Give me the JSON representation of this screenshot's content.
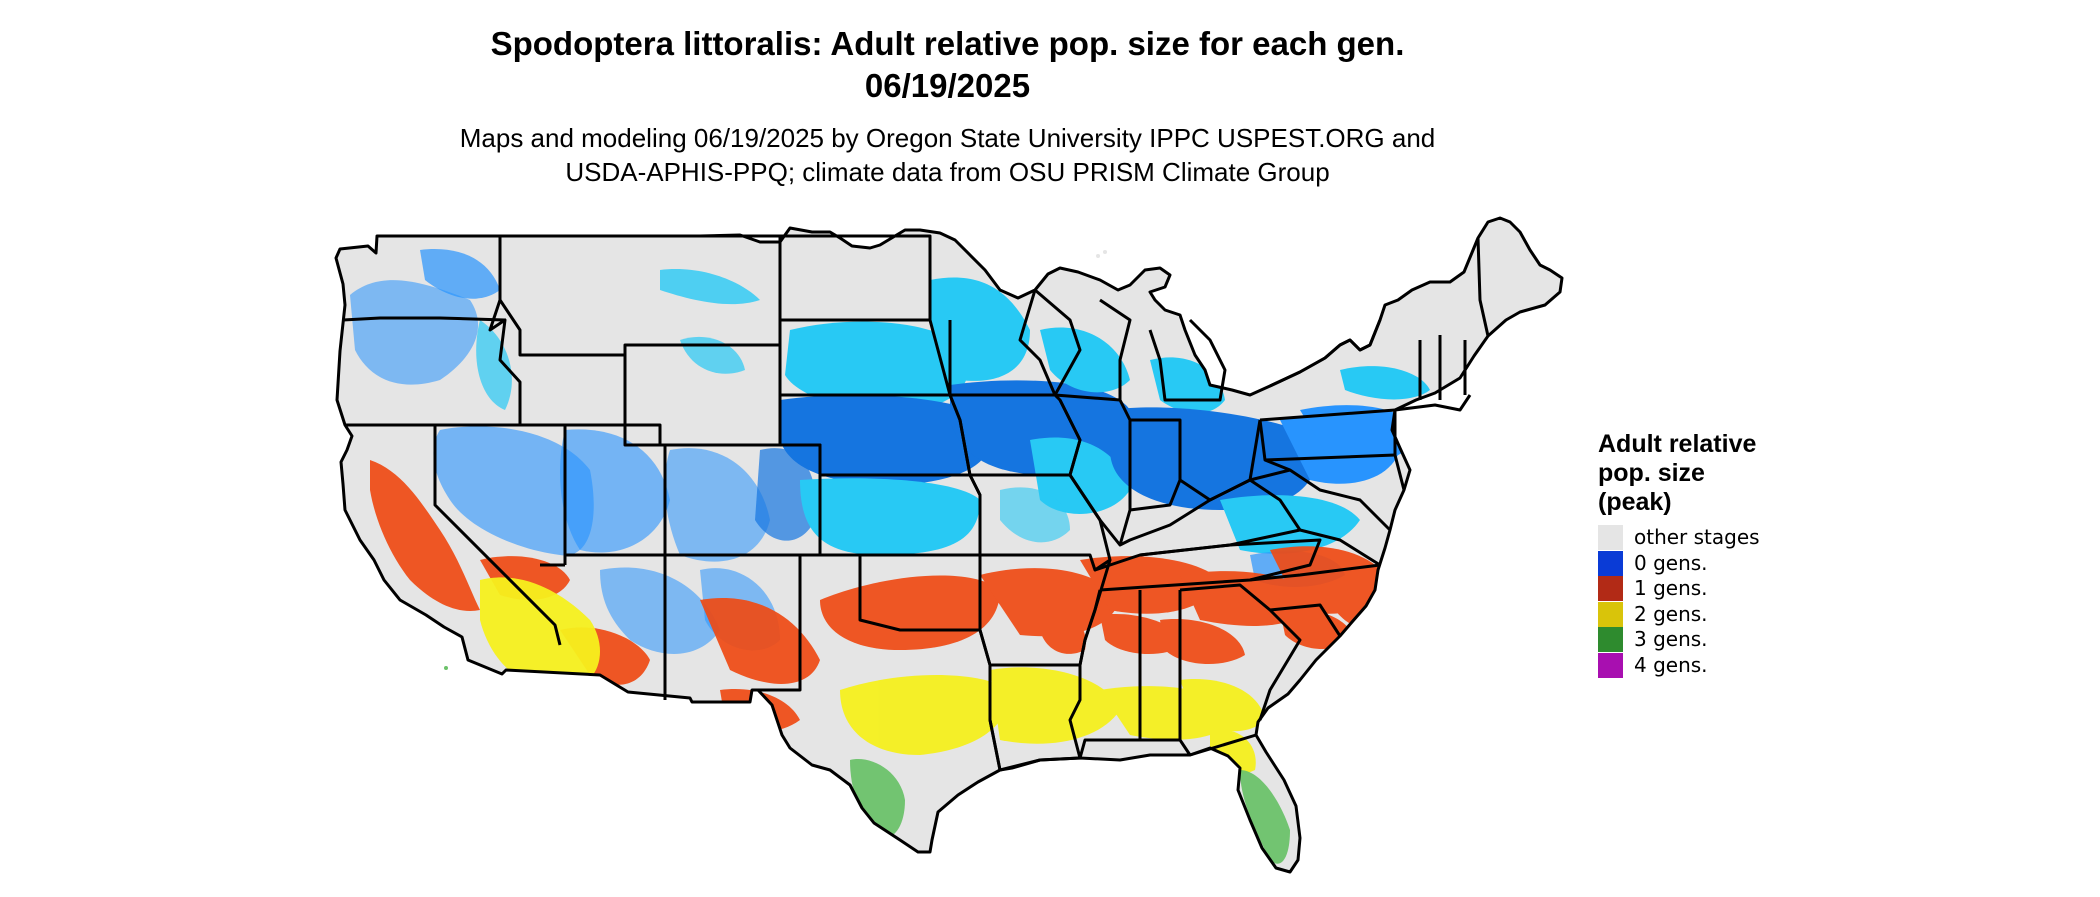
{
  "title_line1": "Spodoptera littoralis: Adult relative pop. size for each gen.",
  "title_line2": "06/19/2025",
  "subtitle_line1": "Maps and modeling 06/19/2025 by Oregon State University IPPC USPEST.ORG and",
  "subtitle_line2": "USDA-APHIS-PPQ; climate data from OSU PRISM Climate Group",
  "legend": {
    "title_lines": [
      "Adult relative",
      "pop. size",
      "(peak)"
    ],
    "items": [
      {
        "label": "other stages",
        "color": "#e5e5e5"
      },
      {
        "label": "0 gens.",
        "color": "#0a3bd6"
      },
      {
        "label": "1 gens.",
        "color": "#b22a16"
      },
      {
        "label": "2 gens.",
        "color": "#d9c40a"
      },
      {
        "label": "3 gens.",
        "color": "#2e8b2e"
      },
      {
        "label": "4 gens.",
        "color": "#a80fb0"
      }
    ]
  },
  "map_colors": {
    "land": "#e5e5e5",
    "border": "#000000",
    "zero_gen_light": "#1ec8f5",
    "zero_gen_mid": "#1e90ff",
    "zero_gen_dark": "#0a6fe0",
    "one_gen": "#ef4a14",
    "two_gen": "#f5f01e",
    "three_gen": "#6cc26a",
    "four_gen": "#d81ee0"
  }
}
